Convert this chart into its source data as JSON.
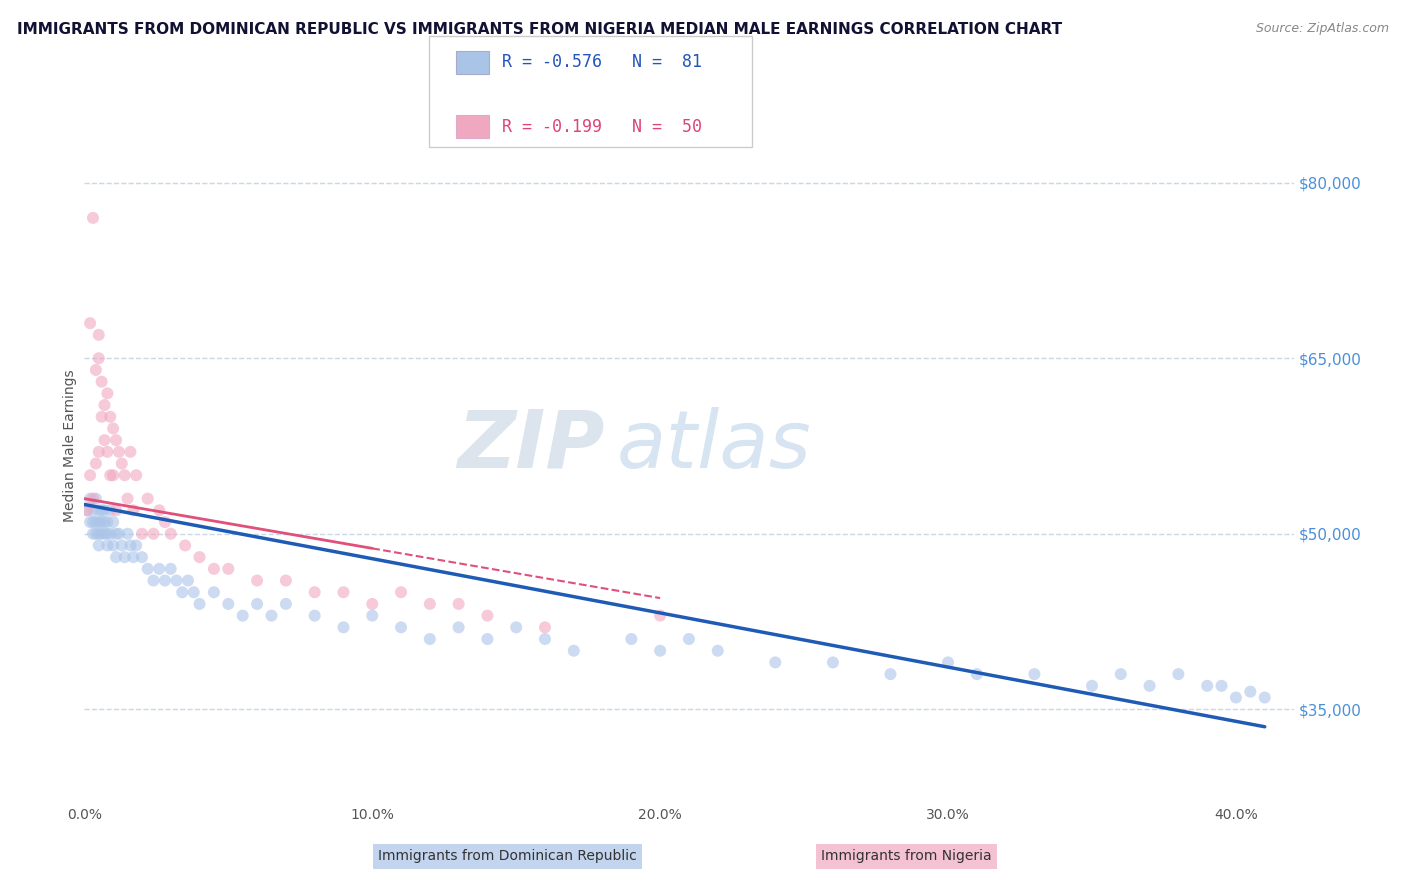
{
  "title": "IMMIGRANTS FROM DOMINICAN REPUBLIC VS IMMIGRANTS FROM NIGERIA MEDIAN MALE EARNINGS CORRELATION CHART",
  "source": "Source: ZipAtlas.com",
  "ylabel": "Median Male Earnings",
  "xlim": [
    0.0,
    0.42
  ],
  "ylim": [
    27000,
    88000
  ],
  "yticks": [
    35000,
    50000,
    65000,
    80000
  ],
  "ytick_labels": [
    "$35,000",
    "$50,000",
    "$65,000",
    "$80,000"
  ],
  "xticks": [
    0.0,
    0.1,
    0.2,
    0.3,
    0.4
  ],
  "xtick_labels": [
    "0.0%",
    "10.0%",
    "20.0%",
    "30.0%",
    "40.0%"
  ],
  "series1_name": "Immigrants from Dominican Republic",
  "series1_color": "#aac4e8",
  "series1_line_color": "#1f5bb5",
  "series1_R": -0.576,
  "series1_N": 81,
  "series2_name": "Immigrants from Nigeria",
  "series2_color": "#f0a8c0",
  "series2_line_color": "#e0507a",
  "series2_R": -0.199,
  "series2_N": 50,
  "background_color": "#ffffff",
  "grid_color": "#c8d8e8",
  "watermark_zip": "ZIP",
  "watermark_atlas": "atlas",
  "title_fontsize": 11,
  "axis_label_fontsize": 10,
  "tick_fontsize": 10,
  "dot_size": 75,
  "dot_alpha": 0.6,
  "series1_x": [
    0.001,
    0.002,
    0.002,
    0.003,
    0.003,
    0.003,
    0.004,
    0.004,
    0.004,
    0.005,
    0.005,
    0.005,
    0.005,
    0.006,
    0.006,
    0.006,
    0.007,
    0.007,
    0.007,
    0.008,
    0.008,
    0.008,
    0.009,
    0.009,
    0.01,
    0.01,
    0.011,
    0.011,
    0.012,
    0.013,
    0.014,
    0.015,
    0.016,
    0.017,
    0.018,
    0.02,
    0.022,
    0.024,
    0.026,
    0.028,
    0.03,
    0.032,
    0.034,
    0.036,
    0.038,
    0.04,
    0.045,
    0.05,
    0.055,
    0.06,
    0.065,
    0.07,
    0.08,
    0.09,
    0.1,
    0.11,
    0.12,
    0.13,
    0.14,
    0.15,
    0.16,
    0.17,
    0.19,
    0.2,
    0.21,
    0.22,
    0.24,
    0.26,
    0.28,
    0.3,
    0.31,
    0.33,
    0.35,
    0.36,
    0.37,
    0.38,
    0.39,
    0.395,
    0.4,
    0.405,
    0.41
  ],
  "series1_y": [
    52000,
    51000,
    53000,
    50000,
    52000,
    51000,
    53000,
    51000,
    50000,
    52000,
    51000,
    50000,
    49000,
    52000,
    51000,
    50000,
    51000,
    50000,
    52000,
    50000,
    51000,
    49000,
    52000,
    50000,
    51000,
    49000,
    50000,
    48000,
    50000,
    49000,
    48000,
    50000,
    49000,
    48000,
    49000,
    48000,
    47000,
    46000,
    47000,
    46000,
    47000,
    46000,
    45000,
    46000,
    45000,
    44000,
    45000,
    44000,
    43000,
    44000,
    43000,
    44000,
    43000,
    42000,
    43000,
    42000,
    41000,
    42000,
    41000,
    42000,
    41000,
    40000,
    41000,
    40000,
    41000,
    40000,
    39000,
    39000,
    38000,
    39000,
    38000,
    38000,
    37000,
    38000,
    37000,
    38000,
    37000,
    37000,
    36000,
    36500,
    36000
  ],
  "series2_x": [
    0.001,
    0.002,
    0.002,
    0.003,
    0.003,
    0.004,
    0.004,
    0.005,
    0.005,
    0.005,
    0.006,
    0.006,
    0.007,
    0.007,
    0.008,
    0.008,
    0.009,
    0.009,
    0.01,
    0.01,
    0.011,
    0.011,
    0.012,
    0.013,
    0.014,
    0.015,
    0.016,
    0.017,
    0.018,
    0.02,
    0.022,
    0.024,
    0.026,
    0.028,
    0.03,
    0.035,
    0.04,
    0.045,
    0.05,
    0.06,
    0.07,
    0.08,
    0.09,
    0.1,
    0.11,
    0.12,
    0.13,
    0.14,
    0.16,
    0.2
  ],
  "series2_y": [
    52000,
    55000,
    68000,
    53000,
    77000,
    56000,
    64000,
    57000,
    67000,
    65000,
    60000,
    63000,
    61000,
    58000,
    62000,
    57000,
    60000,
    55000,
    59000,
    55000,
    58000,
    52000,
    57000,
    56000,
    55000,
    53000,
    57000,
    52000,
    55000,
    50000,
    53000,
    50000,
    52000,
    51000,
    50000,
    49000,
    48000,
    47000,
    47000,
    46000,
    46000,
    45000,
    45000,
    44000,
    45000,
    44000,
    44000,
    43000,
    42000,
    43000
  ],
  "line1_x0": 0.0,
  "line1_y0": 52500,
  "line1_x1": 0.41,
  "line1_y1": 33500,
  "line2_x0": 0.0,
  "line2_y0": 53000,
  "line2_x1": 0.2,
  "line2_y1": 44500
}
